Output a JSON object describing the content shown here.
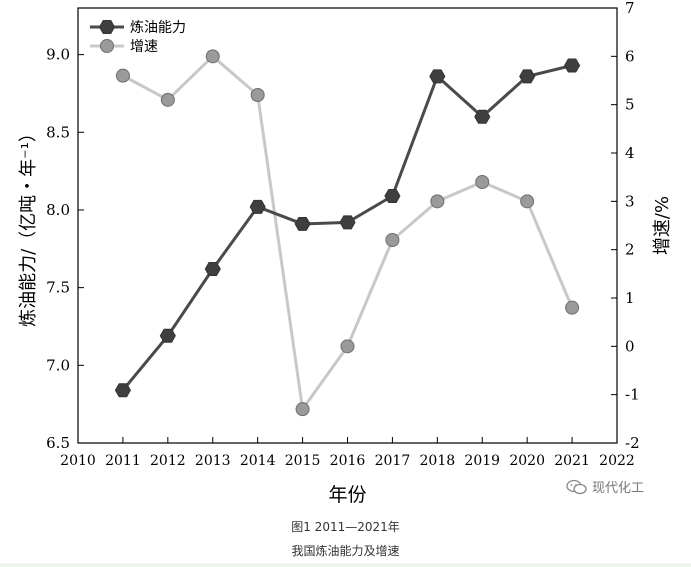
{
  "chart_data": {
    "type": "line",
    "x": [
      2011,
      2012,
      2013,
      2014,
      2015,
      2016,
      2017,
      2018,
      2019,
      2020,
      2021
    ],
    "series": [
      {
        "name": "炼油能力",
        "axis": "left",
        "color": "#4a4a4a",
        "marker": "hexagon",
        "values": [
          6.84,
          7.19,
          7.62,
          8.02,
          7.91,
          7.92,
          8.09,
          8.86,
          8.6,
          8.86,
          8.93
        ]
      },
      {
        "name": "增速",
        "axis": "right",
        "color": "#c8c8c8",
        "marker": "circle",
        "values": [
          5.6,
          5.1,
          6.0,
          5.2,
          -1.3,
          0.0,
          2.2,
          3.0,
          3.4,
          3.0,
          0.8
        ]
      }
    ],
    "xlabel": "年份",
    "ylabel_left": "炼油能力/（亿吨・年⁻¹）",
    "ylabel_right": "增速/%",
    "xlim": [
      2010,
      2022
    ],
    "ylim_left": [
      6.5,
      9.3
    ],
    "ylim_right": [
      -2,
      7
    ],
    "xticks": [
      2010,
      2011,
      2012,
      2013,
      2014,
      2015,
      2016,
      2017,
      2018,
      2019,
      2020,
      2021,
      2022
    ],
    "yticks_left": [
      "6.5",
      "7.0",
      "7.5",
      "8.0",
      "8.5",
      "9.0"
    ],
    "yticks_right": [
      "-2",
      "-1",
      "0",
      "1",
      "2",
      "3",
      "4",
      "5",
      "6",
      "7"
    ],
    "legend_position": "top-left",
    "grid": false
  },
  "caption_line1": "图1  2011—2021年",
  "caption_line2": "我国炼油能力及增速",
  "watermark": "现代化工"
}
